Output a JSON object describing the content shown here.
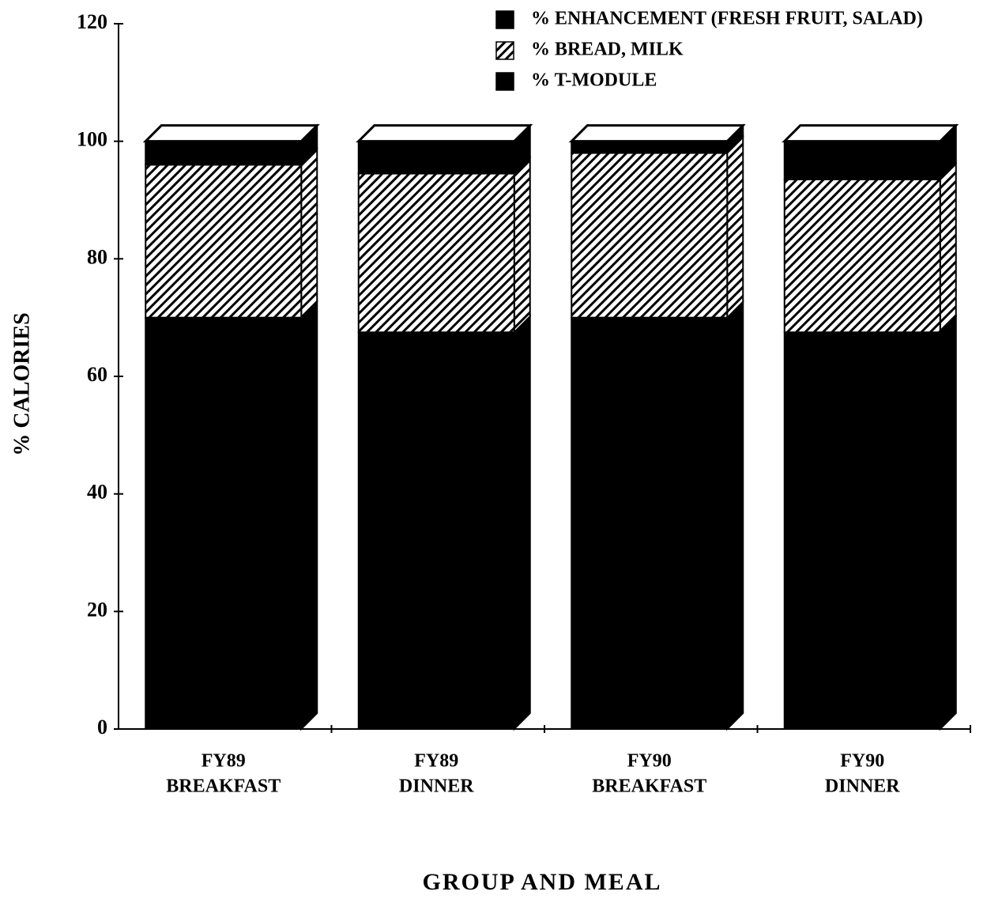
{
  "chart_data": {
    "type": "stacked_bar_3d",
    "y_label": "% CALORIES",
    "x_label": "GROUP AND MEAL",
    "categories": [
      [
        "FY89",
        "BREAKFAST"
      ],
      [
        "FY89",
        "DINNER"
      ],
      [
        "FY90",
        "BREAKFAST"
      ],
      [
        "FY90",
        "DINNER"
      ]
    ],
    "series": [
      {
        "name": "% T-MODULE",
        "color": "#000000",
        "pattern": "solid",
        "values": [
          70,
          67.5,
          70,
          67.5
        ]
      },
      {
        "name": "% BREAD, MILK",
        "color": "#000000",
        "pattern": "hatch",
        "values": [
          26,
          27,
          28,
          26
        ]
      },
      {
        "name": "% ENHANCEMENT (FRESH FRUIT, SALAD)",
        "color": "#000000",
        "pattern": "solid",
        "values": [
          4,
          5.5,
          2,
          6.5
        ]
      }
    ],
    "ylim": [
      0,
      120
    ],
    "yticks": [
      0,
      20,
      40,
      60,
      80,
      100,
      120
    ]
  }
}
